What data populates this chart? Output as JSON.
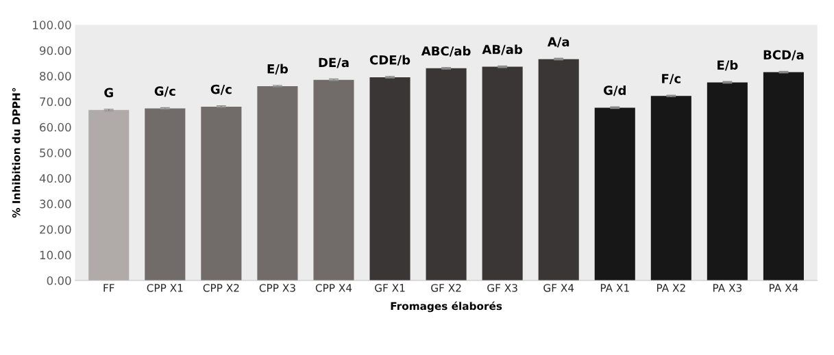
{
  "chart_data": {
    "type": "bar",
    "xlabel": "Fromages élaborés",
    "ylabel": "% Inhibition du DPPH°",
    "categories": [
      "FF",
      "CPP X1",
      "CPP X2",
      "CPP X3",
      "CPP X4",
      "GF X1",
      "GF X2",
      "GF X3",
      "GF X4",
      "PA X1",
      "PA X2",
      "PA X3",
      "PA X4"
    ],
    "values": [
      66.7,
      67.3,
      68.0,
      76.0,
      78.5,
      79.5,
      83.0,
      83.6,
      86.6,
      67.6,
      72.2,
      77.5,
      81.5
    ],
    "errors": [
      0.3,
      0.3,
      0.3,
      0.3,
      0.3,
      0.3,
      0.3,
      0.3,
      0.3,
      0.3,
      0.3,
      0.3,
      0.3
    ],
    "colors": [
      "#b0aaa9",
      "#716b6a",
      "#716b6a",
      "#716b6a",
      "#716b6a",
      "#393635",
      "#393635",
      "#393635",
      "#393635",
      "#181717",
      "#181717",
      "#181717",
      "#181717"
    ],
    "value_labels": [
      "G",
      "G/c",
      "G/c",
      "E/b",
      "DE/a",
      "CDE/b",
      "ABC/ab",
      "AB/ab",
      "A/a",
      "G/d",
      "F/c",
      "E/b",
      "BCD/a"
    ],
    "ylim": [
      0,
      100
    ],
    "yticks": [
      {
        "value": 0,
        "label": "0.00"
      },
      {
        "value": 10,
        "label": "10.00"
      },
      {
        "value": 20,
        "label": "20.00"
      },
      {
        "value": 30,
        "label": "30.00"
      },
      {
        "value": 40,
        "label": "40.00"
      },
      {
        "value": 50,
        "label": "50.00"
      },
      {
        "value": 60,
        "label": "60.00"
      },
      {
        "value": 70,
        "label": "70.00"
      },
      {
        "value": 80,
        "label": "80.00"
      },
      {
        "value": 90,
        "label": "90.00"
      },
      {
        "value": 100,
        "label": "100.00"
      }
    ],
    "grid": false
  }
}
